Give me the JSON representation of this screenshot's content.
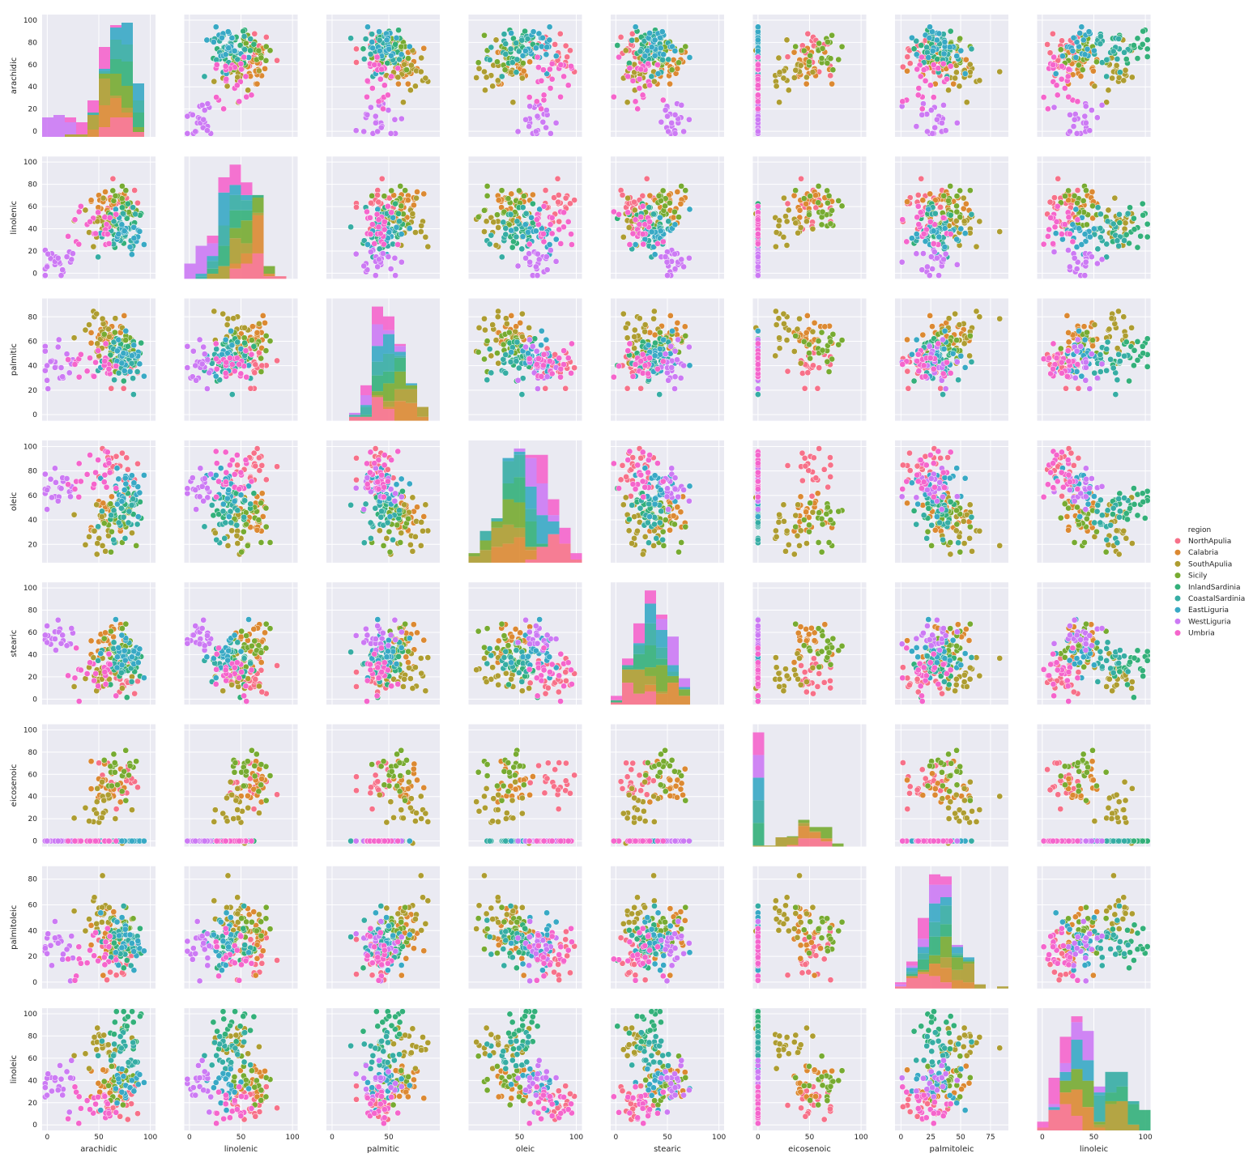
{
  "chart_data": {
    "type": "scatter",
    "kind": "pairplot",
    "variables": [
      "arachidic",
      "linolenic",
      "palmitic",
      "oleic",
      "stearic",
      "eicosenoic",
      "palmitoleic",
      "linoleic"
    ],
    "axis_ticks": {
      "arachidic": [
        0,
        20,
        40,
        60,
        80,
        100
      ],
      "linolenic": [
        0,
        20,
        40,
        60,
        80,
        100
      ],
      "palmitic": [
        0,
        20,
        40,
        60,
        80
      ],
      "oleic": [
        20,
        40,
        60,
        80,
        100
      ],
      "stearic": [
        0,
        20,
        40,
        60,
        80,
        100
      ],
      "eicosenoic": [
        0,
        20,
        40,
        60,
        80,
        100
      ],
      "palmitoleic": [
        0,
        20,
        40,
        60,
        80
      ],
      "linoleic": [
        0,
        20,
        40,
        60,
        80,
        100
      ]
    },
    "axis_ticks_x": {
      "arachidic": [
        0,
        50,
        100
      ],
      "linolenic": [
        0,
        50,
        100
      ],
      "palmitic": [
        0,
        50
      ],
      "oleic": [
        50,
        100
      ],
      "stearic": [
        0,
        50,
        100
      ],
      "eicosenoic": [
        0,
        50,
        100
      ],
      "palmitoleic": [
        0,
        25,
        50,
        75
      ],
      "linoleic": [
        0,
        50,
        100
      ]
    },
    "ranges": {
      "arachidic": [
        -5,
        105
      ],
      "linolenic": [
        -5,
        105
      ],
      "palmitic": [
        -5,
        95
      ],
      "oleic": [
        5,
        105
      ],
      "stearic": [
        -5,
        105
      ],
      "eicosenoic": [
        -5,
        105
      ],
      "palmitoleic": [
        -5,
        90
      ],
      "linoleic": [
        -5,
        105
      ]
    },
    "hue": "region",
    "legend": {
      "title": "region",
      "position": "right",
      "entries": [
        {
          "name": "NorthApulia",
          "color": "#f77189"
        },
        {
          "name": "Calabria",
          "color": "#dc8932"
        },
        {
          "name": "SouthApulia",
          "color": "#ae9d31"
        },
        {
          "name": "Sicily",
          "color": "#77ab31"
        },
        {
          "name": "InlandSardinia",
          "color": "#33b07a"
        },
        {
          "name": "CoastalSardinia",
          "color": "#36ada4"
        },
        {
          "name": "EastLiguria",
          "color": "#38a9c5"
        },
        {
          "name": "WestLiguria",
          "color": "#cc7af4"
        },
        {
          "name": "Umbria",
          "color": "#f565cc"
        }
      ]
    },
    "group_centers": {
      "NorthApulia": {
        "arachidic": 70,
        "linolenic": 60,
        "palmitic": 42,
        "oleic": 78,
        "stearic": 22,
        "eicosenoic": 55,
        "palmitoleic": 18,
        "linoleic": 20
      },
      "Calabria": {
        "arachidic": 60,
        "linolenic": 62,
        "palmitic": 62,
        "oleic": 45,
        "stearic": 52,
        "eicosenoic": 50,
        "palmitoleic": 40,
        "linoleic": 38
      },
      "SouthApulia": {
        "arachidic": 55,
        "linolenic": 45,
        "palmitic": 62,
        "oleic": 35,
        "stearic": 20,
        "eicosenoic": 30,
        "palmitoleic": 55,
        "linoleic": 72
      },
      "Sicily": {
        "arachidic": 70,
        "linolenic": 55,
        "palmitic": 55,
        "oleic": 40,
        "stearic": 45,
        "eicosenoic": 62,
        "palmitoleic": 40,
        "linoleic": 40
      },
      "InlandSardinia": {
        "arachidic": 75,
        "linolenic": 38,
        "palmitic": 48,
        "oleic": 48,
        "stearic": 28,
        "eicosenoic": 0,
        "palmitoleic": 32,
        "linoleic": 85
      },
      "CoastalSardinia": {
        "arachidic": 72,
        "linolenic": 40,
        "palmitic": 45,
        "oleic": 42,
        "stearic": 38,
        "eicosenoic": 0,
        "palmitoleic": 35,
        "linoleic": 68
      },
      "EastLiguria": {
        "arachidic": 75,
        "linolenic": 35,
        "palmitic": 45,
        "oleic": 65,
        "stearic": 40,
        "eicosenoic": 0,
        "palmitoleic": 30,
        "linoleic": 30
      },
      "WestLiguria": {
        "arachidic": 10,
        "linolenic": 10,
        "palmitic": 40,
        "oleic": 65,
        "stearic": 55,
        "eicosenoic": 0,
        "palmitoleic": 30,
        "linoleic": 40
      },
      "Umbria": {
        "arachidic": 45,
        "linolenic": 45,
        "palmitic": 42,
        "oleic": 78,
        "stearic": 22,
        "eicosenoic": 0,
        "palmitoleic": 18,
        "linoleic": 15
      }
    },
    "grid": true,
    "diagonal": "histogram"
  }
}
